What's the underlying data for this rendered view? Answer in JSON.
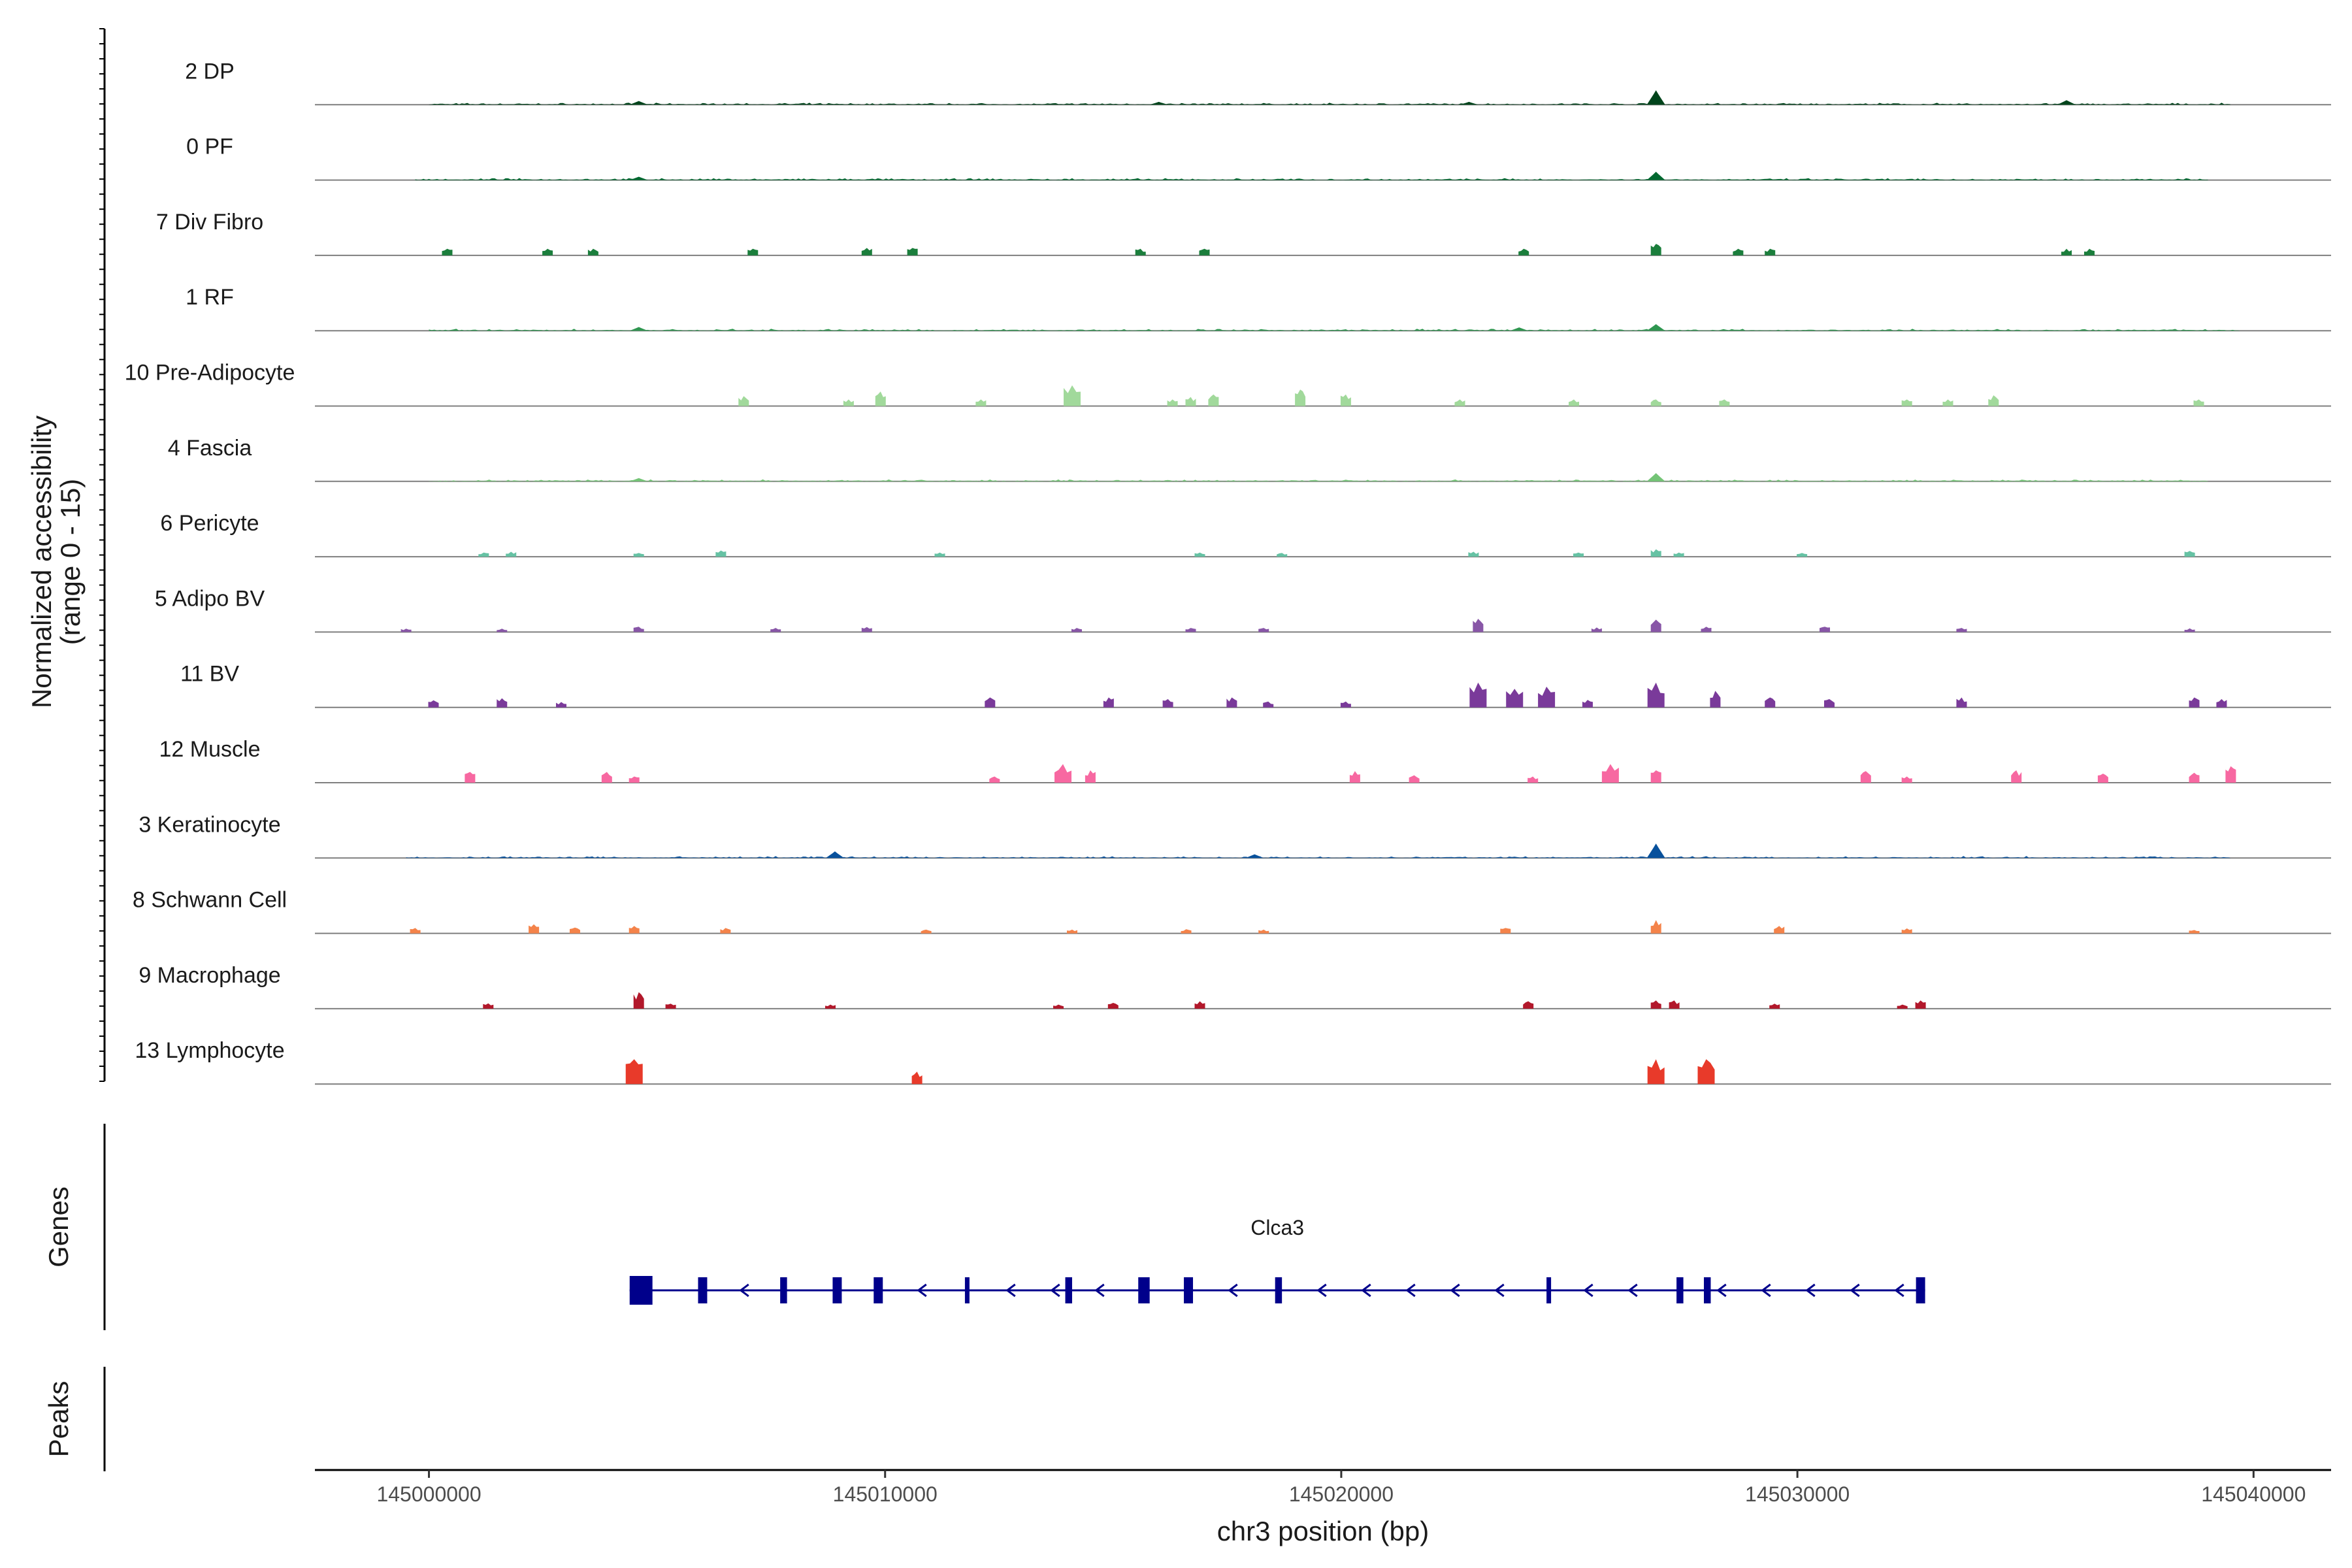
{
  "chart_data": {
    "type": "genome-coverage",
    "title": "",
    "xlabel": "chr3 position (bp)",
    "ylabel": "Normalized accessibility",
    "ylabel_range": "(range 0 - 15)",
    "xlim": [
      144997500,
      145041700
    ],
    "ylim": [
      0,
      15
    ],
    "xticks": [
      145000000,
      145010000,
      145020000,
      145030000,
      145040000
    ],
    "xtick_labels": [
      "145000000",
      "145010000",
      "145020000",
      "145030000",
      "145040000"
    ],
    "tracks": [
      {
        "name": "2 DP",
        "color": "#00441b",
        "style": "dense",
        "range": [
          145000000,
          145039500
        ],
        "peaks": [
          [
            145004600,
            0.9
          ],
          [
            145016000,
            0.7
          ],
          [
            145022800,
            0.7
          ],
          [
            145026900,
            3.5
          ],
          [
            145035900,
            1.1
          ]
        ]
      },
      {
        "name": "0 PF",
        "color": "#00682f",
        "style": "dense",
        "range": [
          144999700,
          145039000
        ],
        "peaks": [
          [
            145004600,
            0.8
          ],
          [
            145026900,
            2.0
          ]
        ]
      },
      {
        "name": "7 Div Fibro",
        "color": "#1b7e3c",
        "style": "sparse",
        "peaks": [
          [
            145000400,
            1.6
          ],
          [
            145002600,
            1.6
          ],
          [
            145003600,
            1.6
          ],
          [
            145007100,
            1.6
          ],
          [
            145009600,
            1.8
          ],
          [
            145010600,
            1.8
          ],
          [
            145015600,
            1.6
          ],
          [
            145017000,
            1.6
          ],
          [
            145024000,
            1.6
          ],
          [
            145026900,
            2.8
          ],
          [
            145028700,
            1.6
          ],
          [
            145029400,
            1.6
          ],
          [
            145035900,
            1.6
          ],
          [
            145036400,
            1.6
          ]
        ]
      },
      {
        "name": "1 RF",
        "color": "#2f9650",
        "style": "dense",
        "range": [
          145000000,
          145039700
        ],
        "peaks": [
          [
            145004600,
            0.9
          ],
          [
            145023900,
            0.8
          ],
          [
            145026900,
            1.6
          ]
        ]
      },
      {
        "name": "10 Pre-Adipocyte",
        "color": "#a1d99b",
        "style": "sparse",
        "peaks": [
          [
            145006900,
            2.4
          ],
          [
            145009200,
            1.6
          ],
          [
            145009900,
            3.5
          ],
          [
            145012100,
            1.6
          ],
          [
            145014100,
            5.0
          ],
          [
            145016300,
            1.6
          ],
          [
            145016700,
            2.2
          ],
          [
            145017200,
            2.8
          ],
          [
            145019100,
            4.0
          ],
          [
            145020100,
            2.8
          ],
          [
            145022600,
            1.6
          ],
          [
            145025100,
            1.6
          ],
          [
            145026900,
            1.6
          ],
          [
            145028400,
            1.6
          ],
          [
            145032400,
            1.6
          ],
          [
            145033300,
            1.6
          ],
          [
            145034300,
            2.6
          ],
          [
            145038800,
            1.6
          ]
        ]
      },
      {
        "name": "4 Fascia",
        "color": "#74c476",
        "style": "dense",
        "range": [
          145000000,
          145039000
        ],
        "peaks": [
          [
            145004600,
            0.8
          ],
          [
            145026900,
            2.0
          ]
        ]
      },
      {
        "name": "6 Pericyte",
        "color": "#66c2a4",
        "style": "sparse",
        "peaks": [
          [
            145001200,
            1.0
          ],
          [
            145001800,
            1.2
          ],
          [
            145004600,
            0.9
          ],
          [
            145006400,
            1.5
          ],
          [
            145011200,
            1.0
          ],
          [
            145016900,
            1.0
          ],
          [
            145018700,
            0.9
          ],
          [
            145022900,
            1.2
          ],
          [
            145025200,
            1.0
          ],
          [
            145026900,
            1.8
          ],
          [
            145027400,
            1.0
          ],
          [
            145030100,
            0.9
          ],
          [
            145038600,
            1.4
          ]
        ]
      },
      {
        "name": "5 Adipo BV",
        "color": "#8856a7",
        "style": "sparse",
        "peaks": [
          [
            144999500,
            0.8
          ],
          [
            145001600,
            0.8
          ],
          [
            145004600,
            1.3
          ],
          [
            145007600,
            1.0
          ],
          [
            145009600,
            1.2
          ],
          [
            145014200,
            1.0
          ],
          [
            145016700,
            1.0
          ],
          [
            145018300,
            1.0
          ],
          [
            145023000,
            3.2
          ],
          [
            145025600,
            1.1
          ],
          [
            145026900,
            3.0
          ],
          [
            145028000,
            1.3
          ],
          [
            145030600,
            1.3
          ],
          [
            145033600,
            1.0
          ],
          [
            145038600,
            0.9
          ]
        ]
      },
      {
        "name": "11 BV",
        "color": "#7a3a9a",
        "style": "sparse",
        "peaks": [
          [
            145000100,
            1.7
          ],
          [
            145001600,
            2.2
          ],
          [
            145002900,
            1.3
          ],
          [
            145012300,
            2.4
          ],
          [
            145014900,
            2.4
          ],
          [
            145016200,
            2.0
          ],
          [
            145017600,
            2.4
          ],
          [
            145018400,
            1.4
          ],
          [
            145020100,
            1.4
          ],
          [
            145023000,
            6.0
          ],
          [
            145023800,
            4.5
          ],
          [
            145024500,
            5.0
          ],
          [
            145025400,
            1.8
          ],
          [
            145026900,
            6.0
          ],
          [
            145028200,
            4.0
          ],
          [
            145029400,
            2.4
          ],
          [
            145030700,
            2.0
          ],
          [
            145033600,
            2.4
          ],
          [
            145038700,
            2.4
          ],
          [
            145039300,
            2.0
          ]
        ]
      },
      {
        "name": "12 Muscle",
        "color": "#f768a1",
        "style": "sparse",
        "peaks": [
          [
            145000900,
            2.6
          ],
          [
            145003900,
            2.6
          ],
          [
            145004500,
            1.5
          ],
          [
            145012400,
            1.5
          ],
          [
            145013900,
            4.5
          ],
          [
            145014500,
            3.0
          ],
          [
            145020300,
            2.8
          ],
          [
            145021600,
            1.8
          ],
          [
            145024200,
            1.5
          ],
          [
            145025900,
            4.5
          ],
          [
            145026900,
            3.0
          ],
          [
            145031500,
            2.8
          ],
          [
            145032400,
            1.5
          ],
          [
            145034800,
            3.0
          ],
          [
            145036700,
            2.2
          ],
          [
            145038700,
            2.4
          ],
          [
            145039500,
            4.0
          ]
        ]
      },
      {
        "name": "3 Keratinocyte",
        "color": "#08519c",
        "style": "dense",
        "range": [
          144999500,
          145039500
        ],
        "peaks": [
          [
            145008900,
            1.6
          ],
          [
            145018100,
            0.9
          ],
          [
            145026900,
            3.5
          ]
        ]
      },
      {
        "name": "8 Schwann Cell",
        "color": "#f4834a",
        "style": "sparse",
        "peaks": [
          [
            144999700,
            1.3
          ],
          [
            145002300,
            2.2
          ],
          [
            145003200,
            1.4
          ],
          [
            145004500,
            1.8
          ],
          [
            145006500,
            1.3
          ],
          [
            145010900,
            0.9
          ],
          [
            145014100,
            0.9
          ],
          [
            145016600,
            1.0
          ],
          [
            145018300,
            0.9
          ],
          [
            145023600,
            1.3
          ],
          [
            145026900,
            3.2
          ],
          [
            145029600,
            1.8
          ],
          [
            145032400,
            1.2
          ],
          [
            145038700,
            0.8
          ]
        ]
      },
      {
        "name": "9 Macrophage",
        "color": "#b2182b",
        "style": "sparse",
        "peaks": [
          [
            145001300,
            1.3
          ],
          [
            145004600,
            4.0
          ],
          [
            145005300,
            1.2
          ],
          [
            145008800,
            1.0
          ],
          [
            145013800,
            1.0
          ],
          [
            145015000,
            1.4
          ],
          [
            145016900,
            1.8
          ],
          [
            145024100,
            1.8
          ],
          [
            145026900,
            2.0
          ],
          [
            145027300,
            2.0
          ],
          [
            145029500,
            1.2
          ],
          [
            145032300,
            1.0
          ],
          [
            145032700,
            2.0
          ]
        ]
      },
      {
        "name": "13 Lymphocyte",
        "color": "#e83a2a",
        "style": "sparse",
        "peaks": [
          [
            145004500,
            6.0
          ],
          [
            145010700,
            3.0
          ],
          [
            145026900,
            6.0
          ],
          [
            145028000,
            6.0
          ]
        ]
      }
    ],
    "genes": [
      {
        "name": "Clca3",
        "strand": "-",
        "start": 145004400,
        "end": 145032800,
        "exons": [
          [
            145004400,
            145004900
          ],
          [
            145005900,
            145006100
          ],
          [
            145007700,
            145007850
          ],
          [
            145008850,
            145009050
          ],
          [
            145009750,
            145009950
          ],
          [
            145011750,
            145011850
          ],
          [
            145013950,
            145014100
          ],
          [
            145015550,
            145015800
          ],
          [
            145016550,
            145016750
          ],
          [
            145018550,
            145018700
          ],
          [
            145024500,
            145024600
          ],
          [
            145027350,
            145027500
          ],
          [
            145027950,
            145028100
          ],
          [
            145032600,
            145032800
          ]
        ]
      }
    ],
    "panels": {
      "genes_title": "Genes",
      "peaks_title": "Peaks"
    }
  }
}
